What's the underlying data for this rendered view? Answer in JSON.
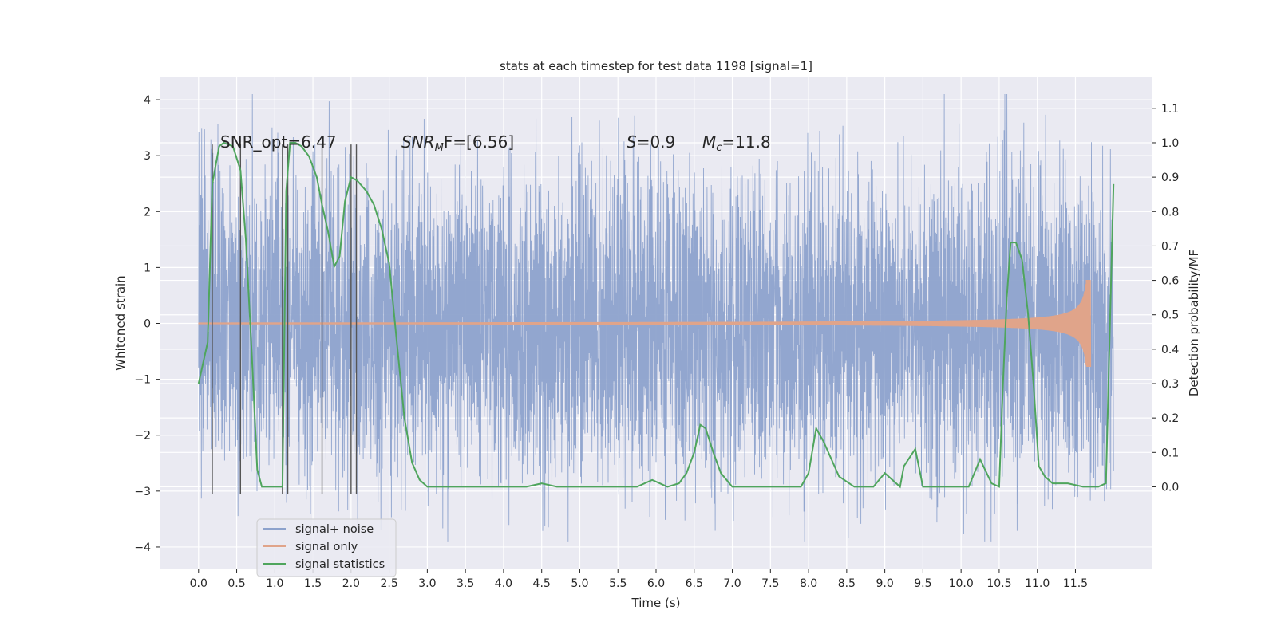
{
  "chart_data": {
    "type": "line",
    "title": "stats at each timestep for test data 1198 [signal=1]",
    "xlabel": "Time (s)",
    "ylabel": "Whitened strain",
    "y2label": "Detection probability/MF",
    "xlim": [
      -0.5,
      12.5
    ],
    "ylim": [
      -4.4,
      4.4
    ],
    "y2lim": [
      -0.24,
      1.19
    ],
    "grid": true,
    "legend_position": "lower-left",
    "x_ticks": [
      "0.0",
      "0.5",
      "1.0",
      "1.5",
      "2.0",
      "2.5",
      "3.0",
      "3.5",
      "4.0",
      "4.5",
      "5.0",
      "5.5",
      "6.0",
      "6.5",
      "7.0",
      "7.5",
      "8.0",
      "8.5",
      "9.0",
      "9.5",
      "10.0",
      "10.5",
      "11.0",
      "11.5"
    ],
    "y_ticks": [
      "−4",
      "−3",
      "−2",
      "−1",
      "0",
      "1",
      "2",
      "3",
      "4"
    ],
    "y2_ticks": [
      "0.0",
      "0.1",
      "0.2",
      "0.3",
      "0.4",
      "0.5",
      "0.6",
      "0.7",
      "0.8",
      "0.9",
      "1.0",
      "1.1"
    ],
    "annotations": {
      "snr_opt": "SNR_opt=6.47",
      "snr_mf_label": "SNR",
      "snr_mf_sub": "M",
      "snr_mf_tail": "F=[6.56]",
      "s_label": "S",
      "s_value": "=0.9",
      "mc_label": "M",
      "mc_sub": "c",
      "mc_value": "=11.8"
    },
    "series": [
      {
        "name": "signal+ noise",
        "color": "#8da2cc",
        "envelope": {
          "x_range": [
            0.0,
            12.0
          ],
          "typical_abs": 2.0,
          "peak_max": 4.1,
          "peak_min": -3.9
        }
      },
      {
        "name": "signal only",
        "color": "#e0a48a",
        "chirp": {
          "x_range": [
            0.0,
            11.7
          ],
          "peak_x": 11.65,
          "peak_amplitude": 0.95
        }
      },
      {
        "name": "signal statistics",
        "color": "#4fa55d",
        "axis": "right",
        "x": [
          0.0,
          0.12,
          0.18,
          0.27,
          0.33,
          0.45,
          0.55,
          0.62,
          0.7,
          0.77,
          0.83,
          0.9,
          1.0,
          1.1,
          1.15,
          1.2,
          1.27,
          1.35,
          1.45,
          1.55,
          1.62,
          1.7,
          1.78,
          1.85,
          1.92,
          2.0,
          2.08,
          2.2,
          2.3,
          2.4,
          2.5,
          2.6,
          2.7,
          2.8,
          2.9,
          3.0,
          3.2,
          3.5,
          4.0,
          4.3,
          4.5,
          4.7,
          5.0,
          5.5,
          5.75,
          5.95,
          6.15,
          6.3,
          6.4,
          6.5,
          6.58,
          6.65,
          6.75,
          6.85,
          7.0,
          7.5,
          7.9,
          8.0,
          8.1,
          8.2,
          8.4,
          8.6,
          8.85,
          9.0,
          9.2,
          9.25,
          9.4,
          9.5,
          9.7,
          9.9,
          10.1,
          10.25,
          10.4,
          10.5,
          10.55,
          10.6,
          10.65,
          10.72,
          10.8,
          10.88,
          10.95,
          11.02,
          11.1,
          11.2,
          11.4,
          11.6,
          11.8,
          11.9,
          12.0
        ],
        "values": [
          0.3,
          0.42,
          0.88,
          0.99,
          1.0,
          0.99,
          0.92,
          0.72,
          0.38,
          0.05,
          0.0,
          0.0,
          0.0,
          0.0,
          0.86,
          1.0,
          1.0,
          0.99,
          0.96,
          0.9,
          0.82,
          0.74,
          0.64,
          0.67,
          0.83,
          0.9,
          0.89,
          0.86,
          0.82,
          0.75,
          0.65,
          0.42,
          0.2,
          0.07,
          0.02,
          0.0,
          0.0,
          0.0,
          0.0,
          0.0,
          0.01,
          0.0,
          0.0,
          0.0,
          0.0,
          0.02,
          0.0,
          0.01,
          0.04,
          0.1,
          0.18,
          0.17,
          0.1,
          0.04,
          0.0,
          0.0,
          0.0,
          0.04,
          0.17,
          0.13,
          0.03,
          0.0,
          0.0,
          0.04,
          0.0,
          0.06,
          0.11,
          0.0,
          0.0,
          0.0,
          0.0,
          0.08,
          0.01,
          0.0,
          0.3,
          0.55,
          0.71,
          0.71,
          0.66,
          0.5,
          0.3,
          0.06,
          0.03,
          0.01,
          0.01,
          0.0,
          0.0,
          0.01,
          0.88
        ]
      }
    ],
    "vertical_markers": {
      "color": "#555555",
      "x": [
        0.18,
        0.55,
        1.1,
        1.17,
        1.62,
        2.0,
        2.07
      ],
      "y_range": [
        -3.05,
        3.2
      ]
    }
  }
}
